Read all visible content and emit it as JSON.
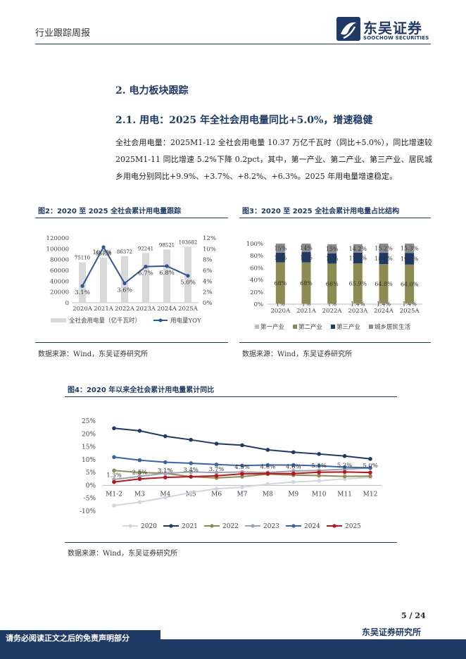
{
  "header": {
    "section_label": "行业跟踪周报",
    "brand_cn": "东吴证券",
    "brand_en": "SOOCHOW SECURITIES"
  },
  "headings": {
    "h2": "2.  电力板块跟踪",
    "h3": "2.1.  用电：2025 年全社会用电量同比+5.0%，增速稳健"
  },
  "paragraph": "全社会用电量：2025M1-12 全社会用电量 10.37 万亿千瓦时（同比+5.0%），同比增速较 2025M1-11 同比增速 5.2%下降 0.2pct，其中，第一产业、第二产业、第三产业、居民城乡用电分别同比+9.9%、+3.7%、+8.2%、+6.3%。2025 年用电量增速稳定。",
  "figures": {
    "fig2_title": "图2：2020 至 2025 全社会累计用电量跟踪",
    "fig3_title": "图3：2020 至 2025 全社会累计用电量占比结构",
    "fig4_title": "图4：2020 年以来全社会累计用电量累计同比",
    "source": "数据来源：Wind，东吴证券研究所"
  },
  "chart_data": [
    {
      "type": "bar",
      "categories": [
        "2020A",
        "2021A",
        "2022A",
        "2023A",
        "2024A",
        "2025A"
      ],
      "series": [
        {
          "name": "全社会用电量（亿千瓦时）",
          "values": [
            75110,
            83128,
            86372,
            92241,
            98521,
            103682
          ],
          "color": "#d9d9d9"
        },
        {
          "name": "用电量YOY",
          "type": "line",
          "values": [
            3.1,
            10.3,
            3.6,
            6.7,
            6.8,
            5.0
          ],
          "color": "#2f5597"
        }
      ],
      "bar_labels": [
        "75110",
        "83128",
        "86372",
        "92241",
        "98521",
        "103682"
      ],
      "line_labels": [
        "3.1%",
        "10.3%",
        "3.6%",
        "6.7%",
        "6.8%",
        "5.0%"
      ],
      "ylim_left": [
        0,
        120000
      ],
      "yticks_left": [
        "0",
        "20000",
        "40000",
        "60000",
        "80000",
        "100000",
        "120000"
      ],
      "ylim_right": [
        0,
        12
      ],
      "yticks_right": [
        "0%",
        "2%",
        "4%",
        "6%",
        "8%",
        "10%",
        "12%"
      ],
      "legend": "bottom"
    },
    {
      "type": "bar",
      "stacked": true,
      "categories": [
        "2020A",
        "2021A",
        "2022A",
        "2023A",
        "2024A",
        "2025A"
      ],
      "series": [
        {
          "name": "第一产业",
          "values": [
            1,
            1,
            1,
            1.4,
            1.4,
            1.4
          ],
          "labels": [
            "1%",
            "1%",
            "1%",
            "1.4%",
            "1.4%",
            "1.4%"
          ],
          "color": "#bfbfbf"
        },
        {
          "name": "第二产业",
          "values": [
            68,
            68,
            66,
            65.9,
            64.8,
            64.0
          ],
          "labels": [
            "68%",
            "68%",
            "66%",
            "65.9%",
            "64.8%",
            "64.0%"
          ],
          "color": "#8c8c52"
        },
        {
          "name": "第三产业",
          "values": [
            16,
            17,
            17,
            17.6,
            18.6,
            19.3
          ],
          "labels": [
            "16%",
            "17%",
            "17%",
            "17.6%",
            "18.6%",
            "19.3%"
          ],
          "color": "#1f3a66"
        },
        {
          "name": "城乡居民生活",
          "values": [
            15,
            14,
            15,
            14.2,
            15.2,
            15.3
          ],
          "labels": [
            "15%",
            "14%",
            "15%",
            "14.2%",
            "15.2%",
            "15.3%"
          ],
          "color": "#8c8c8c"
        }
      ],
      "ylim": [
        0,
        100
      ],
      "yticks": [
        "0%",
        "20%",
        "40%",
        "60%",
        "80%",
        "100%"
      ],
      "legend": "bottom"
    },
    {
      "type": "line",
      "x": [
        "M1-2",
        "M3",
        "M4",
        "M5",
        "M6",
        "M7",
        "M8",
        "M9",
        "M10",
        "M11",
        "M12"
      ],
      "series": [
        {
          "name": "2020",
          "values": [
            -7.8,
            -6.5,
            -4.7,
            -2.8,
            -1.3,
            -0.7,
            0.5,
            1.3,
            1.8,
            2.5,
            3.1
          ],
          "color": "#d0d5de"
        },
        {
          "name": "2021",
          "values": [
            22.2,
            21.2,
            19.1,
            17.7,
            16.2,
            15.6,
            13.8,
            12.9,
            12.2,
            11.4,
            10.3
          ],
          "color": "#1f3a66"
        },
        {
          "name": "2022",
          "values": [
            5.8,
            5.0,
            4.7,
            3.4,
            2.9,
            3.4,
            4.4,
            4.0,
            3.8,
            3.5,
            3.6
          ],
          "color": "#8c8c52"
        },
        {
          "name": "2023",
          "values": [
            2.3,
            3.5,
            4.7,
            5.2,
            5.0,
            5.2,
            5.0,
            5.6,
            5.8,
            6.3,
            6.7
          ],
          "color": "#9aa3b2"
        },
        {
          "name": "2024",
          "values": [
            11.0,
            9.8,
            9.0,
            8.6,
            8.1,
            7.7,
            7.9,
            7.9,
            7.6,
            7.1,
            6.8
          ],
          "color": "#3a64a8"
        },
        {
          "name": "2025",
          "values": [
            1.3,
            2.5,
            3.1,
            3.4,
            3.7,
            4.5,
            4.6,
            4.6,
            5.1,
            5.2,
            5.0
          ],
          "color": "#c0121e"
        }
      ],
      "point_labels_2025": [
        "1.3%",
        "2.5%",
        "3.1%",
        "3.4%",
        "3.7%",
        "4.5%",
        "4.6%",
        "4.6%",
        "5.1%",
        "5.2%",
        "5.0%"
      ],
      "ylim": [
        -10,
        25
      ],
      "yticks": [
        "-10%",
        "-5%",
        "0%",
        "5%",
        "10%",
        "15%",
        "20%",
        "25%"
      ],
      "legend": "bottom"
    }
  ],
  "footer": {
    "page": "5  /  24",
    "firm": "东吴证券研究所",
    "disclaimer": "请务必阅读正文之后的免责声明部分"
  }
}
